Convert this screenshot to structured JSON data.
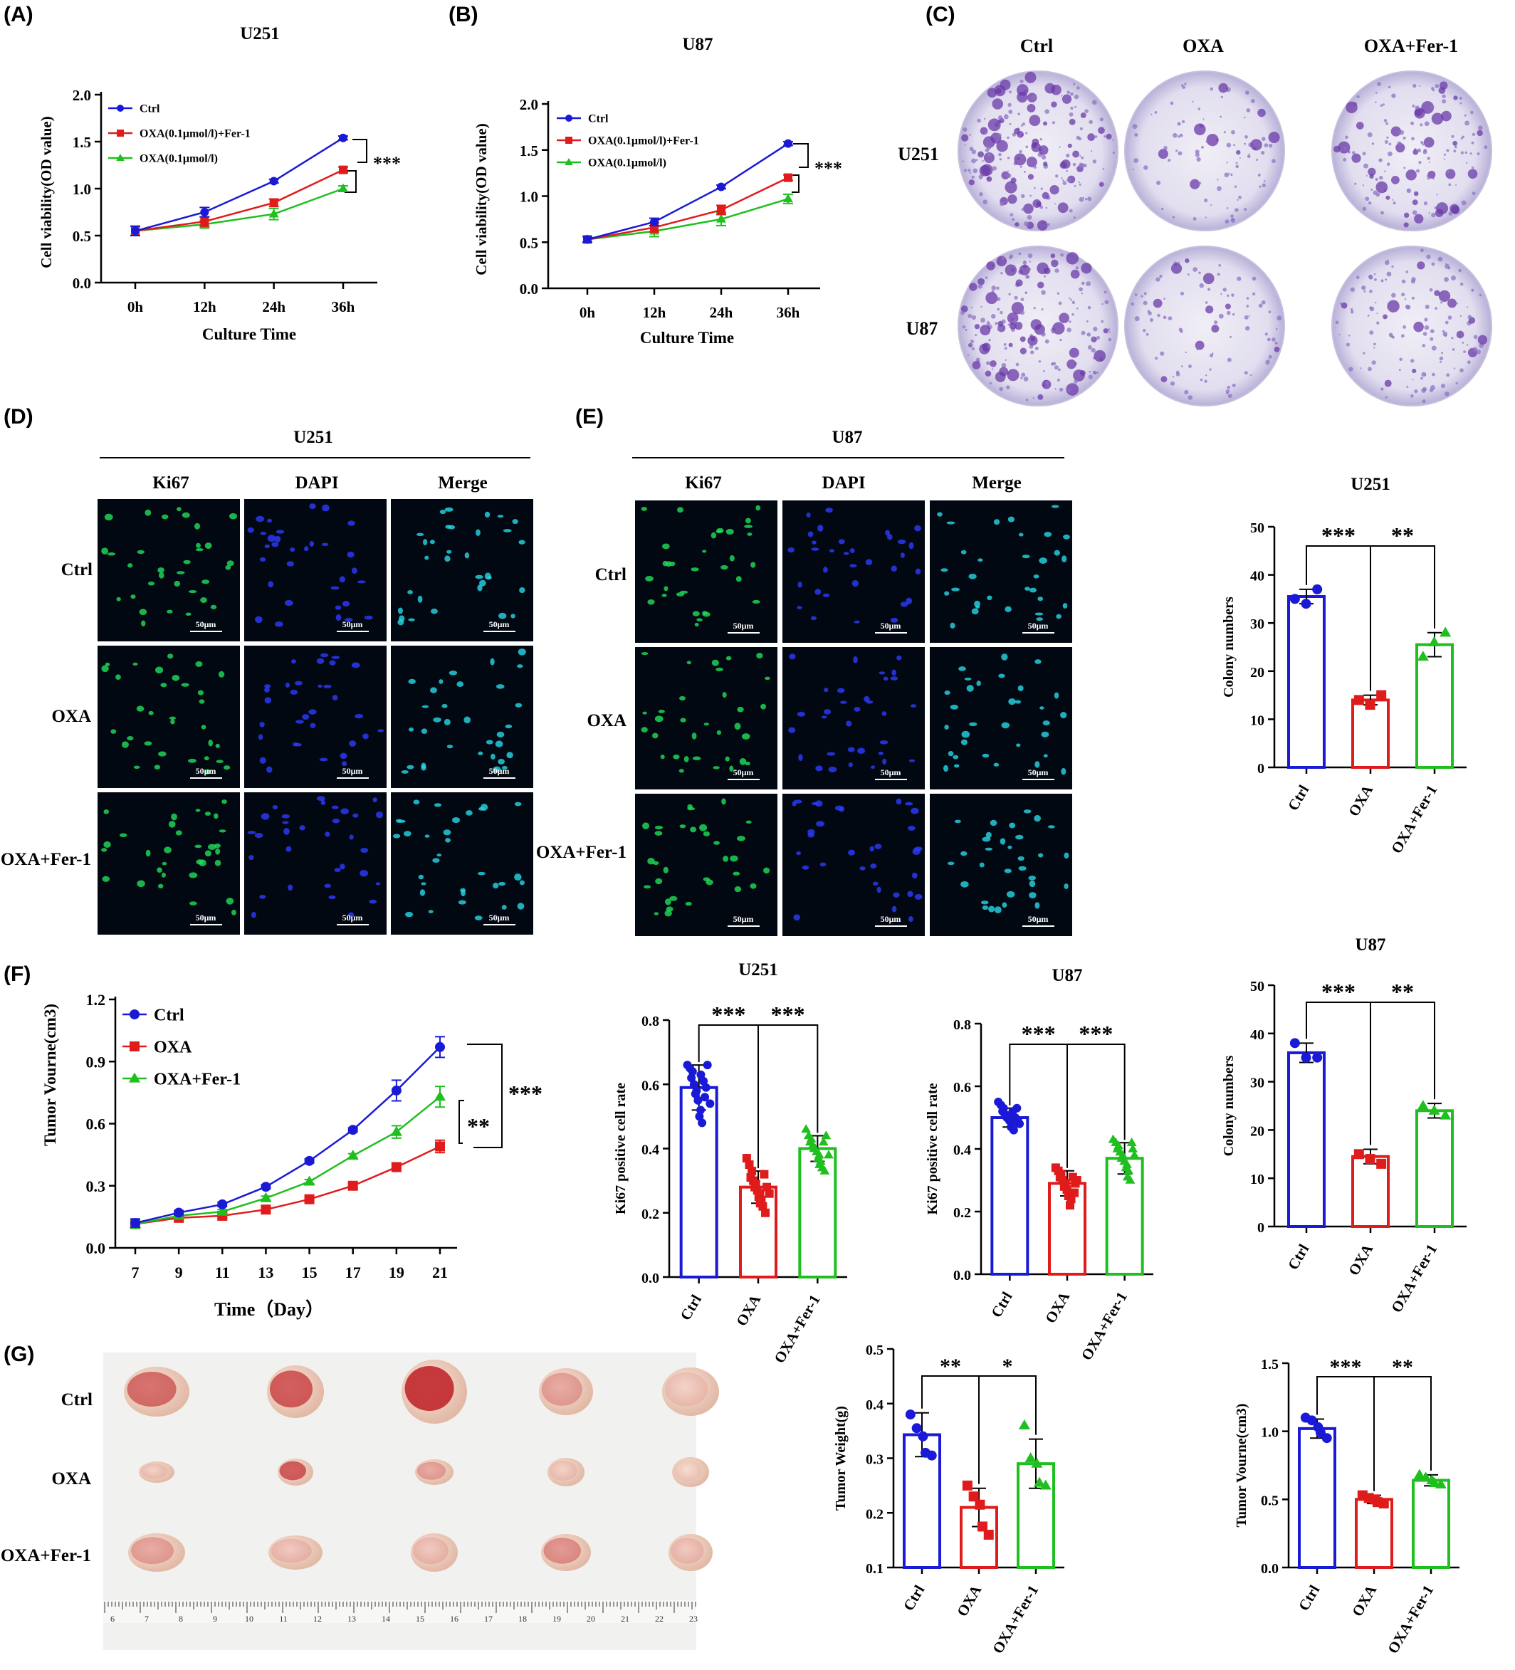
{
  "colors": {
    "ctrl": "#1a1ad6",
    "oxa": "#e01b1b",
    "fer": "#1fbf1f"
  },
  "panelA": {
    "panel_label": "(A)",
    "title": "U251",
    "ylabel": "Cell viability(OD value)",
    "xlabel": "Culture Time",
    "sig": "***",
    "legend": [
      "Ctrl",
      "OXA(0.1μmol/l)+Fer-1",
      "OXA(0.1μmol/l)"
    ]
  },
  "panelB": {
    "panel_label": "(B)",
    "title": "U87",
    "ylabel": "Cell viability(OD value)",
    "xlabel": "Culture Time",
    "sig": "***",
    "legend": [
      "Ctrl",
      "OXA(0.1μmol/l)+Fer-1",
      "OXA(0.1μmol/l)"
    ]
  },
  "panelC": {
    "panel_label": "(C)",
    "cols": [
      "Ctrl",
      "OXA",
      "OXA+Fer-1"
    ],
    "rows": [
      "U251",
      "U87"
    ],
    "density": [
      [
        1.0,
        0.35,
        0.7
      ],
      [
        1.0,
        0.35,
        0.6
      ]
    ]
  },
  "panelD": {
    "panel_label": "(D)",
    "title": "U251",
    "cols": [
      "Ki67",
      "DAPI",
      "Merge"
    ],
    "rows": [
      "Ctrl",
      "OXA",
      "OXA+Fer-1"
    ],
    "scale": "50μm"
  },
  "panelE": {
    "panel_label": "(E)",
    "title": "U87",
    "cols": [
      "Ki67",
      "DAPI",
      "Merge"
    ],
    "rows": [
      "Ctrl",
      "OXA",
      "OXA+Fer-1"
    ],
    "scale": "50μm"
  },
  "panelF": {
    "panel_label": "(F)",
    "ylabel": "Tumor Vourne(cm3)",
    "xlabel": "Time（Day）",
    "legend": [
      "Ctrl",
      "OXA",
      "OXA+Fer-1"
    ],
    "sig_outer": "***",
    "sig_inner": "**"
  },
  "panelG": {
    "panel_label": "(G)",
    "rows": [
      "Ctrl",
      "OXA",
      "OXA+Fer-1"
    ],
    "ruler": [
      "6",
      "7",
      "8",
      "9",
      "10",
      "11",
      "12",
      "13",
      "14",
      "15",
      "16",
      "17",
      "18",
      "19",
      "20",
      "21",
      "22",
      "23"
    ]
  },
  "chart_data": [
    {
      "id": "A",
      "type": "line",
      "title": "U251",
      "xlabel": "Culture Time",
      "ylabel": "Cell viability(OD value)",
      "categories": [
        "0h",
        "12h",
        "24h",
        "36h"
      ],
      "ylim": [
        0,
        2.0
      ],
      "yticks": [
        "0.0",
        "0.5",
        "1.0",
        "1.5",
        "2.0"
      ],
      "series": [
        {
          "name": "Ctrl",
          "values": [
            0.55,
            0.75,
            1.08,
            1.54
          ],
          "err": [
            0.05,
            0.05,
            0.02,
            0.02
          ]
        },
        {
          "name": "OXA(0.1μmol/l)+Fer-1",
          "values": [
            0.55,
            0.65,
            0.85,
            1.2
          ],
          "err": [
            0.05,
            0.05,
            0.04,
            0.03
          ]
        },
        {
          "name": "OXA(0.1μmol/l)",
          "values": [
            0.55,
            0.62,
            0.73,
            1.0
          ],
          "err": [
            0.05,
            0.04,
            0.06,
            0.03
          ]
        }
      ]
    },
    {
      "id": "B",
      "type": "line",
      "title": "U87",
      "xlabel": "Culture Time",
      "ylabel": "Cell viability(OD value)",
      "categories": [
        "0h",
        "12h",
        "24h",
        "36h"
      ],
      "ylim": [
        0,
        2.0
      ],
      "yticks": [
        "0.0",
        "0.5",
        "1.0",
        "1.5",
        "2.0"
      ],
      "series": [
        {
          "name": "Ctrl",
          "values": [
            0.53,
            0.72,
            1.1,
            1.57
          ],
          "err": [
            0.03,
            0.04,
            0.02,
            0.02
          ]
        },
        {
          "name": "OXA(0.1μmol/l)+Fer-1",
          "values": [
            0.53,
            0.66,
            0.85,
            1.2
          ],
          "err": [
            0.03,
            0.05,
            0.05,
            0.03
          ]
        },
        {
          "name": "OXA(0.1μmol/l)",
          "values": [
            0.53,
            0.62,
            0.75,
            0.97
          ],
          "err": [
            0.03,
            0.06,
            0.07,
            0.05
          ]
        }
      ]
    },
    {
      "id": "C_U251",
      "type": "bar",
      "title": "U251",
      "ylabel": "Colony numbers",
      "categories": [
        "Ctrl",
        "OXA",
        "OXA+Fer-1"
      ],
      "values": [
        35.5,
        14,
        25.5
      ],
      "err": [
        1.5,
        1,
        2.5
      ],
      "points": [
        [
          35,
          34,
          37
        ],
        [
          14,
          13,
          15
        ],
        [
          23,
          26,
          28
        ]
      ],
      "ylim": [
        0,
        50
      ],
      "yticks": [
        "0",
        "10",
        "20",
        "30",
        "40",
        "50"
      ],
      "sig": [
        "***",
        "**"
      ]
    },
    {
      "id": "F_line",
      "type": "line",
      "xlabel": "Time（Day）",
      "ylabel": "Tumor Vourne(cm3)",
      "categories": [
        "7",
        "9",
        "11",
        "13",
        "15",
        "17",
        "19",
        "21"
      ],
      "ylim": [
        0,
        1.2
      ],
      "yticks": [
        "0.0",
        "0.3",
        "0.6",
        "0.9",
        "1.2"
      ],
      "series": [
        {
          "name": "Ctrl",
          "values": [
            0.12,
            0.17,
            0.21,
            0.295,
            0.42,
            0.57,
            0.76,
            0.97
          ],
          "err": [
            0.02,
            0.01,
            0.01,
            0.01,
            0.01,
            0.01,
            0.05,
            0.05
          ]
        },
        {
          "name": "OXA",
          "values": [
            0.115,
            0.145,
            0.155,
            0.185,
            0.235,
            0.3,
            0.39,
            0.49
          ],
          "err": [
            0.02,
            0.01,
            0.01,
            0.01,
            0.01,
            0.01,
            0.02,
            0.03
          ]
        },
        {
          "name": "OXA+Fer-1",
          "values": [
            0.115,
            0.155,
            0.175,
            0.24,
            0.32,
            0.445,
            0.56,
            0.73
          ],
          "err": [
            0.02,
            0.01,
            0.01,
            0.01,
            0.01,
            0.01,
            0.03,
            0.05
          ]
        }
      ]
    },
    {
      "id": "F_U251",
      "type": "bar",
      "title": "U251",
      "ylabel": "Ki67 positive cell rate",
      "categories": [
        "Ctrl",
        "OXA",
        "OXA+Fer-1"
      ],
      "values": [
        0.59,
        0.28,
        0.4
      ],
      "err": [
        0.07,
        0.05,
        0.04
      ],
      "ylim": [
        0,
        0.8
      ],
      "yticks": [
        "0.0",
        "0.2",
        "0.4",
        "0.6",
        "0.8"
      ],
      "sig": [
        "***",
        "***"
      ],
      "points": [
        [
          0.66,
          0.65,
          0.64,
          0.62,
          0.6,
          0.58,
          0.57,
          0.55,
          0.52,
          0.5,
          0.48,
          0.63,
          0.61,
          0.59,
          0.56,
          0.66,
          0.54
        ],
        [
          0.37,
          0.35,
          0.33,
          0.31,
          0.3,
          0.29,
          0.28,
          0.27,
          0.26,
          0.25,
          0.24,
          0.23,
          0.22,
          0.2,
          0.32,
          0.28,
          0.26
        ],
        [
          0.46,
          0.44,
          0.43,
          0.42,
          0.41,
          0.4,
          0.4,
          0.39,
          0.38,
          0.37,
          0.36,
          0.35,
          0.34,
          0.33,
          0.42,
          0.44,
          0.38
        ]
      ]
    },
    {
      "id": "F_U87",
      "type": "bar",
      "title": "U87",
      "ylabel": "Ki67 positive cell rate",
      "categories": [
        "Ctrl",
        "OXA",
        "OXA+Fer-1"
      ],
      "values": [
        0.5,
        0.29,
        0.37
      ],
      "err": [
        0.03,
        0.04,
        0.05
      ],
      "ylim": [
        0,
        0.8
      ],
      "yticks": [
        "0.0",
        "0.2",
        "0.4",
        "0.6",
        "0.8"
      ],
      "sig": [
        "***",
        "***"
      ],
      "points": [
        [
          0.55,
          0.54,
          0.53,
          0.52,
          0.51,
          0.5,
          0.5,
          0.49,
          0.48,
          0.47,
          0.46,
          0.52,
          0.5,
          0.49,
          0.53,
          0.48
        ],
        [
          0.34,
          0.33,
          0.32,
          0.31,
          0.3,
          0.29,
          0.28,
          0.27,
          0.26,
          0.25,
          0.24,
          0.22,
          0.31,
          0.29,
          0.26,
          0.3
        ],
        [
          0.43,
          0.42,
          0.41,
          0.4,
          0.39,
          0.38,
          0.37,
          0.36,
          0.35,
          0.34,
          0.33,
          0.31,
          0.3,
          0.4,
          0.42,
          0.38
        ]
      ]
    },
    {
      "id": "C_U87",
      "type": "bar",
      "title": "U87",
      "ylabel": "Colony numbers",
      "categories": [
        "Ctrl",
        "OXA",
        "OXA+Fer-1"
      ],
      "values": [
        36,
        14.5,
        24
      ],
      "err": [
        2,
        1.5,
        1.5
      ],
      "points": [
        [
          38,
          35,
          35
        ],
        [
          15,
          14,
          13
        ],
        [
          25,
          24,
          23
        ]
      ],
      "ylim": [
        0,
        50
      ],
      "yticks": [
        "0",
        "10",
        "20",
        "30",
        "40",
        "50"
      ],
      "sig": [
        "***",
        "**"
      ]
    },
    {
      "id": "G_weight",
      "type": "bar",
      "ylabel": "Tumor Weight(g)",
      "categories": [
        "Ctrl",
        "OXA",
        "OXA+Fer-1"
      ],
      "values": [
        0.343,
        0.21,
        0.29
      ],
      "err": [
        0.04,
        0.035,
        0.045
      ],
      "ylim": [
        0.1,
        0.5
      ],
      "yticks": [
        "0.1",
        "0.2",
        "0.3",
        "0.4",
        "0.5"
      ],
      "sig": [
        "**",
        "*"
      ],
      "points": [
        [
          0.38,
          0.355,
          0.34,
          0.31,
          0.305
        ],
        [
          0.25,
          0.23,
          0.215,
          0.175,
          0.16
        ],
        [
          0.36,
          0.3,
          0.29,
          0.255,
          0.25
        ]
      ]
    },
    {
      "id": "G_volume",
      "type": "bar",
      "ylabel": "Tumor Vourne(cm3)",
      "categories": [
        "Ctrl",
        "OXA",
        "OXA+Fer-1"
      ],
      "values": [
        1.02,
        0.5,
        0.64
      ],
      "err": [
        0.07,
        0.03,
        0.04
      ],
      "ylim": [
        0,
        1.5
      ],
      "yticks": [
        "0.0",
        "0.5",
        "1.0",
        "1.5"
      ],
      "sig": [
        "***",
        "**"
      ],
      "points": [
        [
          1.1,
          1.08,
          1.03,
          0.99,
          0.95
        ],
        [
          0.53,
          0.51,
          0.5,
          0.48,
          0.47
        ],
        [
          0.68,
          0.66,
          0.64,
          0.62,
          0.61
        ]
      ]
    }
  ]
}
